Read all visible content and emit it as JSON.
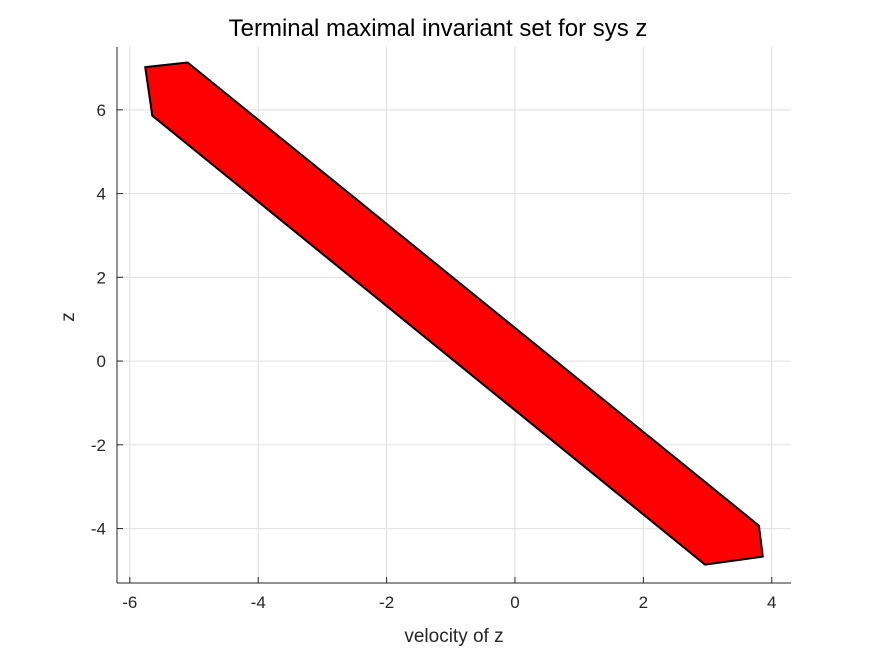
{
  "chart_data": {
    "type": "area",
    "title": "Terminal maximal invariant set for sys z",
    "xlabel": "velocity of z",
    "ylabel": "z",
    "xlim": [
      -6.2,
      4.3
    ],
    "ylim": [
      -5.3,
      7.5
    ],
    "xticks": [
      -6,
      -4,
      -2,
      0,
      2,
      4
    ],
    "xtick_labels": [
      "-6",
      "-4",
      "-2",
      "0",
      "2",
      "4"
    ],
    "yticks": [
      -4,
      -2,
      0,
      2,
      4,
      6
    ],
    "ytick_labels": [
      "-4",
      "-2",
      "0",
      "2",
      "4",
      "6"
    ],
    "grid": true,
    "series": [
      {
        "fill_color": "#ff0000",
        "edge_color": "#000000",
        "vertices": [
          [
            -5.76,
            7.02
          ],
          [
            -5.1,
            7.13
          ],
          [
            3.8,
            -3.93
          ],
          [
            3.86,
            -4.67
          ],
          [
            2.96,
            -4.86
          ],
          [
            -5.65,
            5.86
          ]
        ]
      }
    ]
  }
}
